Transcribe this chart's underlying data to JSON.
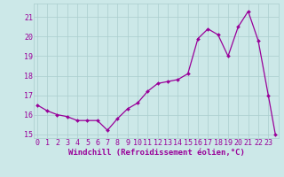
{
  "x": [
    0,
    1,
    2,
    3,
    4,
    5,
    6,
    7,
    8,
    9,
    10,
    11,
    12,
    13,
    14,
    15,
    16,
    17,
    18,
    19,
    20,
    21,
    22,
    23,
    23.7
  ],
  "y": [
    16.5,
    16.2,
    16.0,
    15.9,
    15.7,
    15.7,
    15.7,
    15.2,
    15.8,
    16.3,
    16.6,
    17.2,
    17.6,
    17.7,
    17.8,
    18.1,
    19.9,
    20.4,
    20.1,
    19.0,
    20.5,
    21.3,
    19.8,
    17.0,
    15.0
  ],
  "line_color": "#990099",
  "marker_color": "#990099",
  "bg_color": "#cce8e8",
  "grid_color": "#aacece",
  "text_color": "#990099",
  "xlabel": "Windchill (Refroidissement éolien,°C)",
  "ylim": [
    14.8,
    21.7
  ],
  "xlim": [
    -0.3,
    24.0
  ],
  "yticks": [
    15,
    16,
    17,
    18,
    19,
    20,
    21
  ],
  "xticks": [
    0,
    1,
    2,
    3,
    4,
    5,
    6,
    7,
    8,
    9,
    10,
    11,
    12,
    13,
    14,
    15,
    16,
    17,
    18,
    19,
    20,
    21,
    22,
    23
  ],
  "label_fontsize": 6.5,
  "tick_fontsize": 6.0,
  "line_width": 0.9,
  "marker_size": 2.0
}
